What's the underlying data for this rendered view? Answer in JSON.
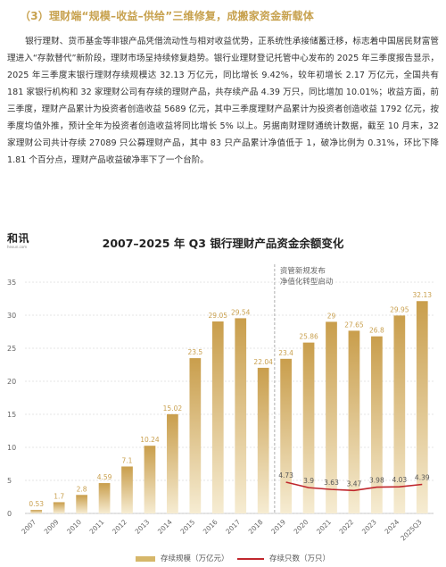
{
  "heading": "（3）理财端“规模–收益–供给”三维修复，成搬家资金新载体",
  "paragraph": "银行理财、货币基金等非银产品凭借流动性与相对收益优势，正系统性承接储蓄迁移，标志着中国居民财富管理进入“存款替代”新阶段，理财市场呈持续修复趋势。银行业理财登记托管中心发布的 2025 年三季度报告显示，2025 年三季度末银行理财存续规模达 32.13 万亿元，同比增长 9.42%，较年初增长 2.17 万亿元，全国共有 181 家银行机构和 32 家理财公司有存续的理财产品，共存续产品 4.39 万只，同比增加 10.01%；收益方面，前三季度，理财产品累计为投资者创造收益 5689 亿元，其中三季度理财产品累计为投资者创造收益 1792 亿元，按季度均值外推，预计全年为投资者创造收益将同比增长 5% 以上。另据南财理财通统计数据，截至 10 月末，32 家理财公司共计存续 27089 只公募理财产品，其中 83 只产品累计净值低于 1，破净比例为 0.31%，环比下降 1.81 个百分点，理财产品收益破净率下了一个台阶。",
  "logo": {
    "main": "和讯",
    "sub": "hexun.com"
  },
  "chart_data": {
    "type": "bar",
    "title": "2007–2025 年 Q3 银行理财产品资金余额变化",
    "categories": [
      "2007",
      "2009",
      "2010",
      "2011",
      "2012",
      "2013",
      "2014",
      "2015",
      "2016",
      "2017",
      "2018",
      "2019",
      "2020",
      "2021",
      "2022",
      "2023",
      "2024",
      "2025Q3"
    ],
    "series": [
      {
        "name": "存续规模（万亿元）",
        "type": "bar",
        "values": [
          0.53,
          1.7,
          2.8,
          4.59,
          7.1,
          10.24,
          15.02,
          23.5,
          29.05,
          29.54,
          22.04,
          23.4,
          25.86,
          29,
          27.65,
          26.8,
          29.95,
          32.13
        ]
      },
      {
        "name": "存续只数（万只）",
        "type": "line",
        "values": [
          null,
          null,
          null,
          null,
          null,
          null,
          null,
          null,
          null,
          null,
          null,
          4.73,
          3.9,
          3.63,
          3.47,
          3.98,
          4.03,
          4.39
        ]
      }
    ],
    "ylim": [
      0,
      35
    ],
    "yticks": [
      0,
      5,
      10,
      15,
      20,
      25,
      30,
      35
    ],
    "grid": true,
    "annotation": "资管新规发布\n净值化转型启动",
    "annotation_after_category": "2018",
    "legend_position": "bottom",
    "colors": {
      "bar_light": "#f3e6c4",
      "bar_dark": "#c9a04f",
      "line": "#c0272d",
      "label": "#c9a04f"
    }
  }
}
